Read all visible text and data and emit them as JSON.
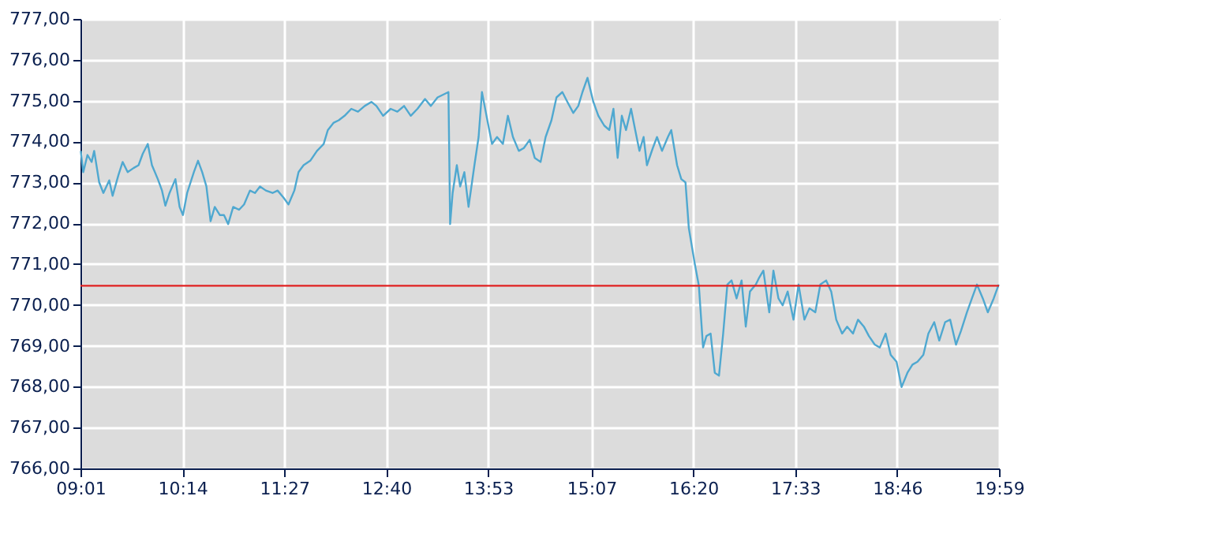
{
  "chart_data": {
    "type": "line",
    "x": [
      9.02,
      9.05,
      9.1,
      9.15,
      9.18,
      9.24,
      9.29,
      9.36,
      9.4,
      9.47,
      9.52,
      9.58,
      9.65,
      9.71,
      9.76,
      9.82,
      9.87,
      9.94,
      9.99,
      10.03,
      10.08,
      10.15,
      10.2,
      10.24,
      10.29,
      10.37,
      10.42,
      10.47,
      10.52,
      10.57,
      10.62,
      10.68,
      10.73,
      10.78,
      10.84,
      10.91,
      10.97,
      11.04,
      11.1,
      11.16,
      11.23,
      11.31,
      11.37,
      11.44,
      11.5,
      11.57,
      11.62,
      11.68,
      11.76,
      11.84,
      11.92,
      11.97,
      12.04,
      12.1,
      12.17,
      12.25,
      12.33,
      12.41,
      12.49,
      12.55,
      12.63,
      12.72,
      12.8,
      12.88,
      12.96,
      13.04,
      13.13,
      13.2,
      13.28,
      13.41,
      13.43,
      13.46,
      13.51,
      13.55,
      13.6,
      13.65,
      13.72,
      13.77,
      13.81,
      13.88,
      13.93,
      13.99,
      14.06,
      14.12,
      14.18,
      14.25,
      14.31,
      14.38,
      14.44,
      14.51,
      14.57,
      14.64,
      14.7,
      14.77,
      14.83,
      14.9,
      14.96,
      15.01,
      15.07,
      15.14,
      15.2,
      15.27,
      15.33,
      15.38,
      15.43,
      15.48,
      15.53,
      15.59,
      15.64,
      15.69,
      15.74,
      15.78,
      15.85,
      15.9,
      15.96,
      16.03,
      16.07,
      16.14,
      16.19,
      16.24,
      16.28,
      16.35,
      16.4,
      16.45,
      16.49,
      16.54,
      16.59,
      16.64,
      16.69,
      16.74,
      16.79,
      16.85,
      16.91,
      16.96,
      17.01,
      17.08,
      17.12,
      17.17,
      17.24,
      17.29,
      17.35,
      17.4,
      17.46,
      17.53,
      17.59,
      17.66,
      17.72,
      17.79,
      17.85,
      17.92,
      17.98,
      18.04,
      18.11,
      18.17,
      18.24,
      18.3,
      18.37,
      18.43,
      18.5,
      18.56,
      18.63,
      18.69,
      18.76,
      18.82,
      18.89,
      18.95,
      19.01,
      19.08,
      19.14,
      19.21,
      19.27,
      19.34,
      19.4,
      19.47,
      19.53,
      19.6,
      19.66,
      19.72,
      19.79,
      19.85,
      19.92,
      19.98
    ],
    "series": [
      {
        "color": "#4fa8d0",
        "values": [
          773.77,
          773.25,
          773.67,
          773.5,
          773.77,
          773.0,
          772.74,
          773.05,
          772.67,
          773.18,
          773.5,
          773.25,
          773.35,
          773.42,
          773.7,
          773.94,
          773.42,
          773.08,
          772.8,
          772.43,
          772.74,
          773.08,
          772.4,
          772.2,
          772.74,
          773.25,
          773.53,
          773.25,
          772.9,
          772.05,
          772.4,
          772.2,
          772.2,
          771.98,
          772.4,
          772.33,
          772.46,
          772.8,
          772.74,
          772.9,
          772.8,
          772.74,
          772.8,
          772.63,
          772.46,
          772.8,
          773.25,
          773.42,
          773.53,
          773.77,
          773.94,
          774.28,
          774.46,
          774.52,
          774.63,
          774.8,
          774.73,
          774.87,
          774.97,
          774.87,
          774.63,
          774.8,
          774.73,
          774.87,
          774.63,
          774.8,
          775.04,
          774.87,
          775.08,
          775.21,
          771.98,
          772.74,
          773.42,
          772.9,
          773.25,
          772.4,
          773.42,
          774.11,
          775.21,
          774.46,
          773.94,
          774.11,
          773.94,
          774.63,
          774.11,
          773.77,
          773.84,
          774.04,
          773.6,
          773.5,
          774.11,
          774.52,
          775.08,
          775.21,
          774.97,
          774.7,
          774.87,
          775.21,
          775.56,
          774.97,
          774.63,
          774.39,
          774.28,
          774.8,
          773.6,
          774.63,
          774.28,
          774.8,
          774.28,
          773.77,
          774.11,
          773.42,
          773.84,
          774.11,
          773.77,
          774.11,
          774.28,
          773.42,
          773.08,
          773.0,
          771.88,
          771.02,
          770.47,
          768.96,
          769.24,
          769.3,
          768.34,
          768.27,
          769.3,
          770.5,
          770.6,
          770.16,
          770.6,
          769.47,
          770.33,
          770.5,
          770.67,
          770.84,
          769.82,
          770.84,
          770.16,
          769.99,
          770.33,
          769.64,
          770.5,
          769.64,
          769.92,
          769.82,
          770.5,
          770.6,
          770.33,
          769.64,
          769.3,
          769.47,
          769.3,
          769.64,
          769.47,
          769.24,
          769.03,
          768.96,
          769.3,
          768.78,
          768.61,
          767.99,
          768.34,
          768.54,
          768.61,
          768.78,
          769.3,
          769.58,
          769.13,
          769.58,
          769.64,
          769.03,
          769.37,
          769.82,
          770.16,
          770.5,
          770.16,
          769.82,
          770.16,
          770.5
        ]
      }
    ],
    "xlim": [
      9.0167,
      19.9833
    ],
    "xticks": [
      {
        "value": 9.0167,
        "label": "09:01"
      },
      {
        "value": 10.2333,
        "label": "10:14"
      },
      {
        "value": 11.45,
        "label": "11:27"
      },
      {
        "value": 12.6667,
        "label": "12:40"
      },
      {
        "value": 13.8833,
        "label": "13:53"
      },
      {
        "value": 15.1167,
        "label": "15:07"
      },
      {
        "value": 16.3333,
        "label": "16:20"
      },
      {
        "value": 17.55,
        "label": "17:33"
      },
      {
        "value": 18.7667,
        "label": "18:46"
      },
      {
        "value": 19.9833,
        "label": "19:59"
      }
    ],
    "ylim": [
      766,
      777
    ],
    "yticks": [
      {
        "value": 766,
        "label": "766,00"
      },
      {
        "value": 767,
        "label": "767,00"
      },
      {
        "value": 768,
        "label": "768,00"
      },
      {
        "value": 769,
        "label": "769,00"
      },
      {
        "value": 770,
        "label": "770,00"
      },
      {
        "value": 771,
        "label": "771,00"
      },
      {
        "value": 772,
        "label": "772,00"
      },
      {
        "value": 773,
        "label": "773,00"
      },
      {
        "value": 774,
        "label": "774,00"
      },
      {
        "value": 775,
        "label": "775,00"
      },
      {
        "value": 776,
        "label": "776,00"
      },
      {
        "value": 777,
        "label": "777,00"
      }
    ],
    "ref_lines": [
      {
        "axis": "y",
        "value": 770.47,
        "color": "#e02020"
      }
    ],
    "grid": true,
    "line_style": "solid"
  }
}
